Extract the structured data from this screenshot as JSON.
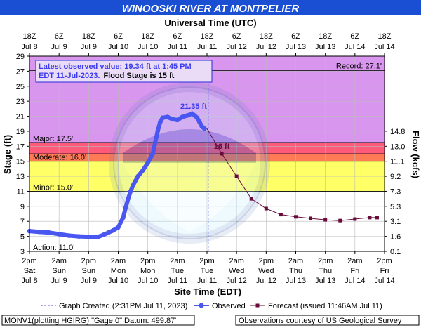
{
  "title": "WINOOSKI RIVER AT MONTPELIER",
  "colors": {
    "header_bg": "#1a4fd4",
    "header_text": "#ffffff",
    "record_band": "#d896ee",
    "major_band": "#ff5a7a",
    "moderate_band": "#ff7b55",
    "minor_band": "#ffc94a",
    "action_band": "#ffff66",
    "observed": "#4a56f0",
    "forecast": "#6a0a3a",
    "label_blue": "#3a3af0"
  },
  "info_box": {
    "line1": "Latest observed value: 19.34 ft at 1:45 PM",
    "line2": "EDT 11-Jul-2023.",
    "line2b": "Flood Stage is 15 ft"
  },
  "legend": {
    "graph_created": "Graph Created (2:31PM Jul 11, 2023)",
    "observed": "Observed",
    "forecast": "Forecast (issued 11:46AM Jul 11)"
  },
  "footer": {
    "left": "MONV1(plotting HGIRG) \"Gage 0\" Datum: 499.87'",
    "right": "Observations courtesy of US Geological Survey"
  },
  "chart_data": {
    "type": "line",
    "title": "WINOOSKI RIVER AT MONTPELIER",
    "top_axis_title": "Universal Time (UTC)",
    "xlabel": "Site Time (EDT)",
    "ylabel": "Stage (ft)",
    "y2label": "Flow (kcfs)",
    "x_range_hours": [
      0,
      144
    ],
    "ylim": [
      3,
      29
    ],
    "y_ticks": [
      3,
      5,
      7,
      9,
      11,
      13,
      15,
      17,
      19,
      21,
      23,
      25,
      27,
      29
    ],
    "grid": true,
    "bottom_ticks": [
      {
        "h": 0,
        "time": "2pm",
        "day": "Sat",
        "date": "Jul 8"
      },
      {
        "h": 12,
        "time": "2am",
        "day": "Sun",
        "date": "Jul 9"
      },
      {
        "h": 24,
        "time": "2pm",
        "day": "Sun",
        "date": "Jul 9"
      },
      {
        "h": 36,
        "time": "2am",
        "day": "Mon",
        "date": "Jul 10"
      },
      {
        "h": 48,
        "time": "2pm",
        "day": "Mon",
        "date": "Jul 10"
      },
      {
        "h": 60,
        "time": "2am",
        "day": "Tue",
        "date": "Jul 11"
      },
      {
        "h": 72,
        "time": "2pm",
        "day": "Tue",
        "date": "Jul 11"
      },
      {
        "h": 84,
        "time": "2am",
        "day": "Wed",
        "date": "Jul 12"
      },
      {
        "h": 96,
        "time": "2pm",
        "day": "Wed",
        "date": "Jul 12"
      },
      {
        "h": 108,
        "time": "2am",
        "day": "Thu",
        "date": "Jul 13"
      },
      {
        "h": 120,
        "time": "2pm",
        "day": "Thu",
        "date": "Jul 13"
      },
      {
        "h": 132,
        "time": "2am",
        "day": "Fri",
        "date": "Jul 14"
      },
      {
        "h": 144,
        "time": "2pm",
        "day": "Fri",
        "date": "Jul 14"
      }
    ],
    "top_ticks": [
      {
        "h": 0,
        "time": "18Z",
        "date": "Jul 8"
      },
      {
        "h": 12,
        "time": "6Z",
        "date": "Jul 9"
      },
      {
        "h": 24,
        "time": "18Z",
        "date": "Jul 9"
      },
      {
        "h": 36,
        "time": "6Z",
        "date": "Jul 10"
      },
      {
        "h": 48,
        "time": "18Z",
        "date": "Jul 10"
      },
      {
        "h": 60,
        "time": "6Z",
        "date": "Jul 11"
      },
      {
        "h": 72,
        "time": "18Z",
        "date": "Jul 11"
      },
      {
        "h": 84,
        "time": "6Z",
        "date": "Jul 12"
      },
      {
        "h": 96,
        "time": "18Z",
        "date": "Jul 12"
      },
      {
        "h": 108,
        "time": "6Z",
        "date": "Jul 13"
      },
      {
        "h": 120,
        "time": "18Z",
        "date": "Jul 13"
      },
      {
        "h": 132,
        "time": "6Z",
        "date": "Jul 14"
      },
      {
        "h": 144,
        "time": "18Z",
        "date": "Jul 14"
      }
    ],
    "flow_ticks": [
      {
        "stage": 3,
        "label": "0.1"
      },
      {
        "stage": 5,
        "label": "1.6"
      },
      {
        "stage": 7,
        "label": "3.1"
      },
      {
        "stage": 9,
        "label": "5.3"
      },
      {
        "stage": 11,
        "label": "7.3"
      },
      {
        "stage": 13,
        "label": "9.2"
      },
      {
        "stage": 15,
        "label": "11.1"
      },
      {
        "stage": 17,
        "label": "13.0"
      },
      {
        "stage": 19,
        "label": "14.8"
      }
    ],
    "flood_categories": [
      {
        "name": "Record",
        "label": "Record: 27.1'",
        "from": 27.1,
        "to": 29,
        "color": "#d896ee"
      },
      {
        "name": "Major",
        "label": "Major: 17.5'",
        "from": 17.5,
        "to": 27.1,
        "color": "#d896ee"
      },
      {
        "name": "Major band",
        "label": "",
        "from": 16.0,
        "to": 17.5,
        "color": "#ff5a7a"
      },
      {
        "name": "Moderate",
        "label": "Moderate: 16.0'",
        "from": 15.0,
        "to": 16.0,
        "color": "#ff7b55"
      },
      {
        "name": "Minor",
        "label": "Minor: 15.0'",
        "from": 11.0,
        "to": 15.0,
        "color": "#ffff66"
      },
      {
        "name": "Action",
        "label": "Action: 11.0'",
        "from": 3,
        "to": 11.0,
        "color": "#ffffff"
      }
    ],
    "thresholds": {
      "record": 27.1,
      "major": 17.5,
      "moderate": 16.0,
      "minor": 15.0,
      "action": 11.0
    },
    "graph_created_h": 72.5,
    "annotations": [
      {
        "text": "21.35 ft",
        "h": 66,
        "stage": 21.35
      },
      {
        "text": "16 ft",
        "h": 78,
        "stage": 16
      }
    ],
    "observed": {
      "name": "Observed",
      "points": [
        [
          0,
          5.7
        ],
        [
          4,
          5.6
        ],
        [
          8,
          5.5
        ],
        [
          12,
          5.3
        ],
        [
          16,
          5.1
        ],
        [
          20,
          5.0
        ],
        [
          24,
          4.95
        ],
        [
          28,
          4.95
        ],
        [
          30,
          5.2
        ],
        [
          32,
          5.5
        ],
        [
          34,
          5.8
        ],
        [
          36,
          6.2
        ],
        [
          38,
          7.5
        ],
        [
          39,
          8.8
        ],
        [
          40,
          10.0
        ],
        [
          41,
          11.0
        ],
        [
          42,
          11.8
        ],
        [
          44,
          13.0
        ],
        [
          46,
          13.8
        ],
        [
          48,
          14.8
        ],
        [
          50,
          16.0
        ],
        [
          51,
          17.5
        ],
        [
          52,
          19.0
        ],
        [
          53,
          20.2
        ],
        [
          54,
          20.8
        ],
        [
          56,
          20.9
        ],
        [
          58,
          20.6
        ],
        [
          60,
          20.5
        ],
        [
          62,
          20.9
        ],
        [
          64,
          21.1
        ],
        [
          66,
          21.35
        ],
        [
          67,
          21.1
        ],
        [
          68,
          20.8
        ],
        [
          69,
          20.2
        ],
        [
          70,
          19.6
        ],
        [
          71,
          19.34
        ]
      ]
    },
    "forecast": {
      "name": "Forecast",
      "points": [
        [
          72,
          19.34
        ],
        [
          78,
          16.0
        ],
        [
          84,
          13.0
        ],
        [
          90,
          10.0
        ],
        [
          96,
          8.7
        ],
        [
          102,
          7.9
        ],
        [
          108,
          7.6
        ],
        [
          114,
          7.4
        ],
        [
          120,
          7.2
        ],
        [
          126,
          7.1
        ],
        [
          132,
          7.3
        ],
        [
          138,
          7.5
        ],
        [
          141,
          7.5
        ]
      ]
    }
  }
}
